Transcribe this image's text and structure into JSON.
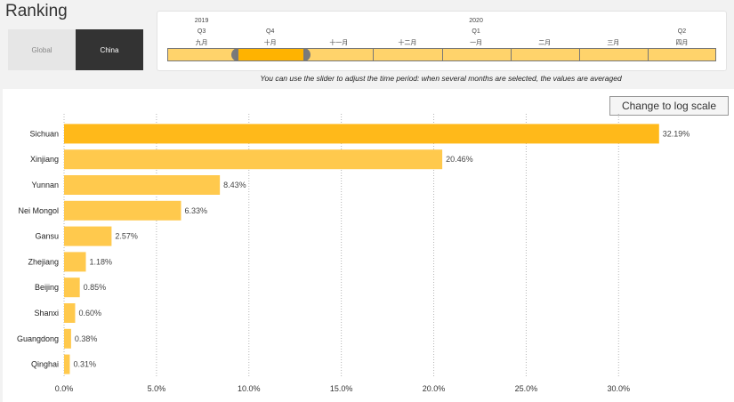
{
  "page": {
    "title": "Ranking"
  },
  "scope": {
    "global_label": "Global",
    "china_label": "China"
  },
  "slider": {
    "months": [
      {
        "year": "2019",
        "quarter": "Q3",
        "label": "九月"
      },
      {
        "year": "",
        "quarter": "Q4",
        "label": "十月"
      },
      {
        "year": "",
        "quarter": "",
        "label": "十一月"
      },
      {
        "year": "",
        "quarter": "",
        "label": "十二月"
      },
      {
        "year": "2020",
        "quarter": "Q1",
        "label": "一月"
      },
      {
        "year": "",
        "quarter": "",
        "label": "二月"
      },
      {
        "year": "",
        "quarter": "",
        "label": "三月"
      },
      {
        "year": "",
        "quarter": "Q2",
        "label": "四月"
      }
    ],
    "selected_month": "十月",
    "note": "You can use the slider to adjust the time period: when several months are selected, the values are averaged"
  },
  "log_button": {
    "label": "Change to log scale"
  },
  "colors": {
    "top_bar": "#FFB91A",
    "bar": "#FFC94D",
    "handle": "#7a7a7a",
    "selection": "#FFB300"
  },
  "chart_data": {
    "type": "bar",
    "orientation": "horizontal",
    "categories": [
      "Sichuan",
      "Xinjiang",
      "Yunnan",
      "Nei Mongol",
      "Gansu",
      "Zhejiang",
      "Beijing",
      "Shanxi",
      "Guangdong",
      "Qinghai"
    ],
    "values": [
      32.19,
      20.46,
      8.43,
      6.33,
      2.57,
      1.18,
      0.85,
      0.6,
      0.38,
      0.31
    ],
    "value_labels": [
      "32.19%",
      "20.46%",
      "8.43%",
      "6.33%",
      "2.57%",
      "1.18%",
      "0.85%",
      "0.60%",
      "0.38%",
      "0.31%"
    ],
    "x_ticks": [
      0,
      5,
      10,
      15,
      20,
      25,
      30
    ],
    "x_tick_labels": [
      "0.0%",
      "5.0%",
      "10.0%",
      "15.0%",
      "20.0%",
      "25.0%",
      "30.0%"
    ],
    "xlim": [
      0,
      33.5
    ],
    "grid": "vertical dotted",
    "xlabel": "",
    "ylabel": ""
  }
}
